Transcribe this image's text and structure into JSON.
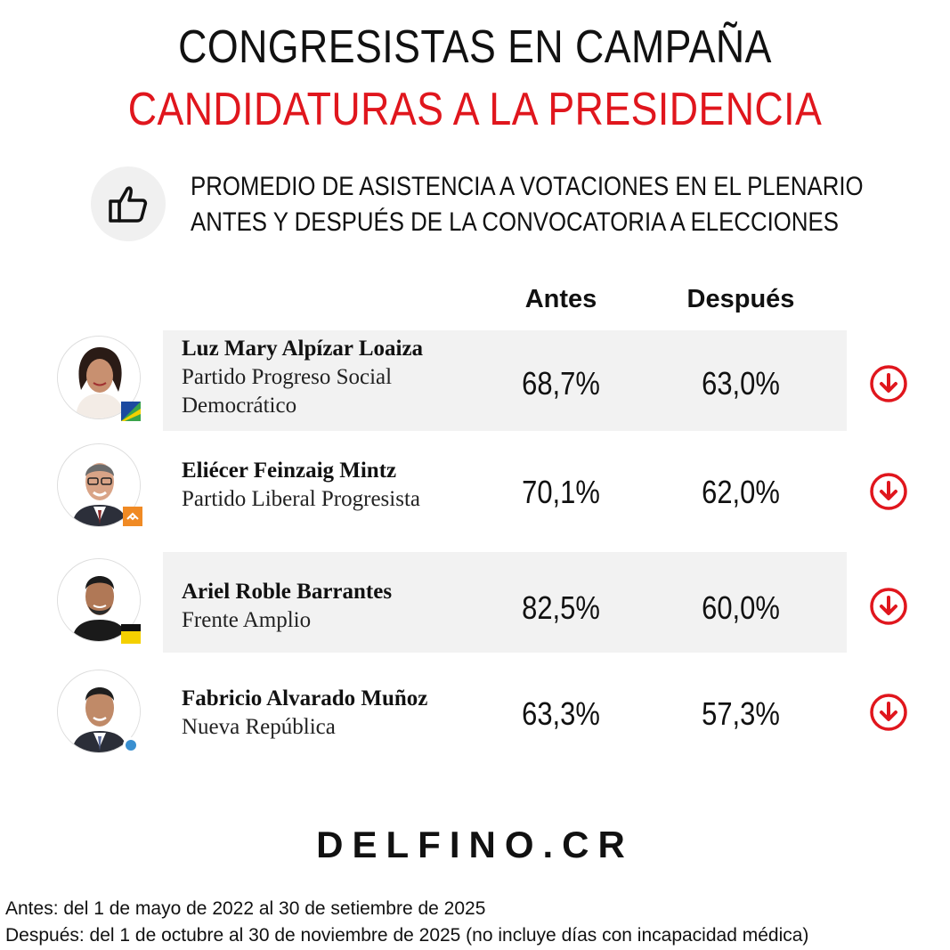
{
  "header": {
    "title_line1": "CONGRESISTAS EN CAMPAÑA",
    "title_line2": "CANDIDATURAS A LA PRESIDENCIA",
    "subtitle_line1": "PROMEDIO DE ASISTENCIA A VOTACIONES EN EL PLENARIO",
    "subtitle_line2": "ANTES Y DESPUÉS DE LA CONVOCATORIA A ELECCIONES",
    "icon": "thumbs-up-icon"
  },
  "table": {
    "col_antes": "Antes",
    "col_despues": "Después",
    "rows": [
      {
        "name": "Luz Mary Alpízar Loaiza",
        "party": "Partido Progreso Social Democrático",
        "antes": "68,7%",
        "despues": "63,0%",
        "trend": "down-arrow-icon"
      },
      {
        "name": "Eliécer Feinzaig Mintz",
        "party": "Partido Liberal Progresista",
        "antes": "70,1%",
        "despues": "62,0%",
        "trend": "down-arrow-icon"
      },
      {
        "name": "Ariel Roble Barrantes",
        "party": "Frente Amplio",
        "antes": "82,5%",
        "despues": "60,0%",
        "trend": "down-arrow-icon"
      },
      {
        "name": "Fabricio Alvarado Muñoz",
        "party": "Nueva República",
        "antes": "63,3%",
        "despues": "57,3%",
        "trend": "down-arrow-icon"
      }
    ]
  },
  "footer": {
    "logo": "DELFINO.CR",
    "note_antes": "Antes: del 1 de mayo de 2022 al 30 de setiembre de 2025",
    "note_despues": "Después: del 1 de octubre al 30 de noviembre de 2025 (no incluye días con incapacidad médica)"
  },
  "colors": {
    "accent_red": "#e0161d",
    "row_shade": "#f2f2f2"
  }
}
